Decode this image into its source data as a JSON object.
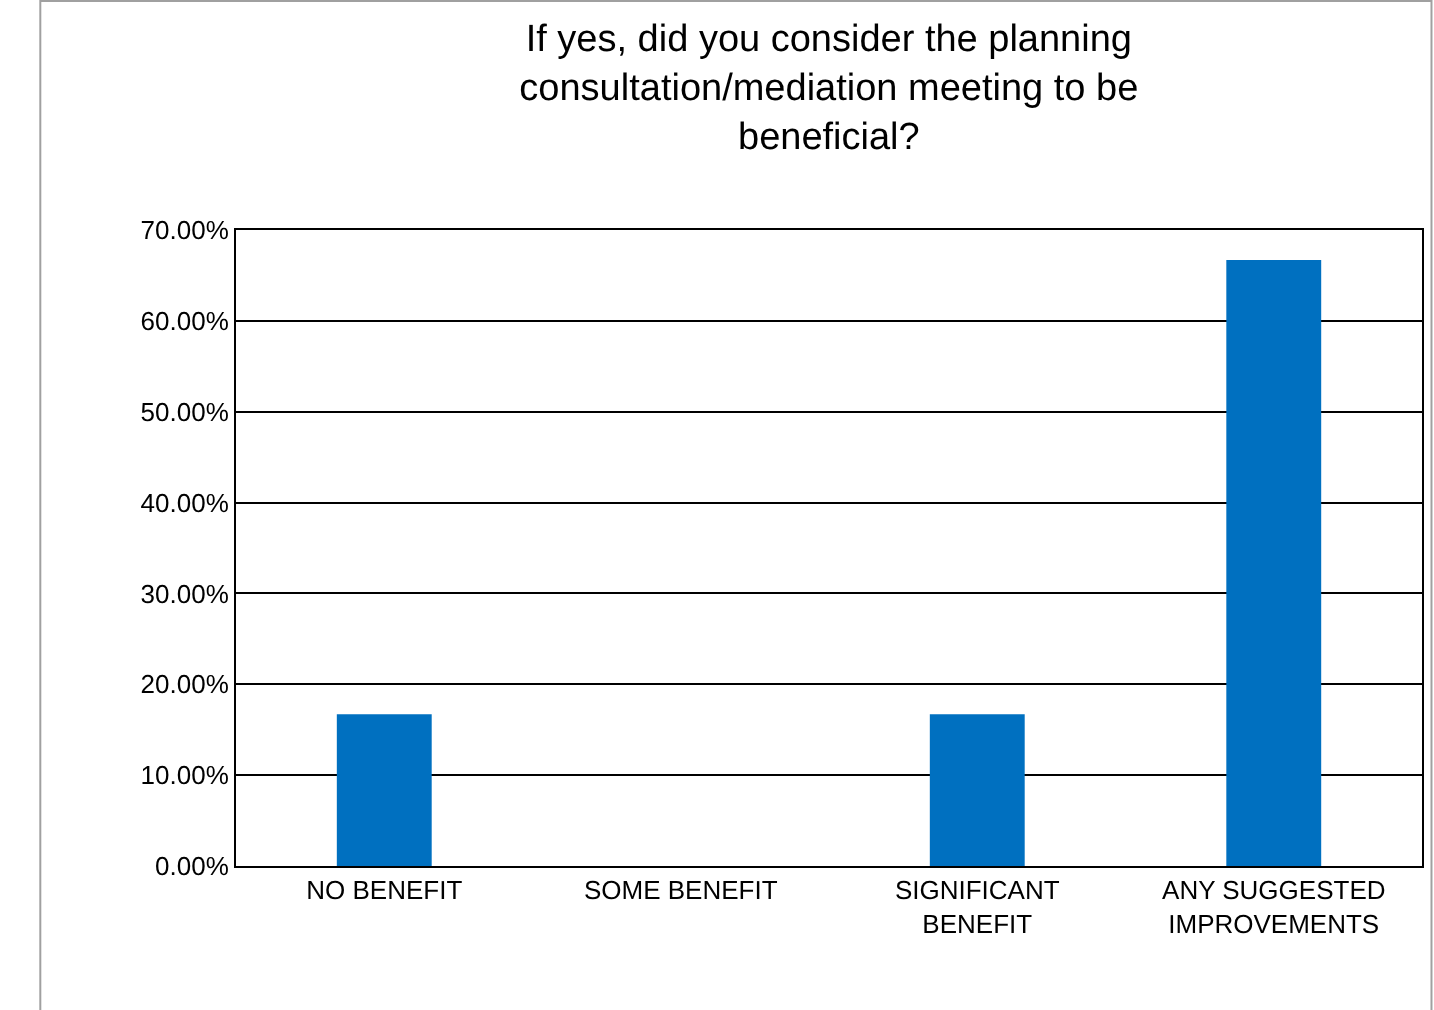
{
  "chart_data": {
    "type": "bar",
    "title": "If yes, did you consider the planning consultation/mediation meeting to be beneficial?",
    "categories": [
      "NO BENEFIT",
      "SOME BENEFIT",
      "SIGNIFICANT BENEFIT",
      "ANY SUGGESTED IMPROVEMENTS"
    ],
    "values": [
      16.7,
      0,
      16.7,
      66.7
    ],
    "color": "#0070c0",
    "ylim": [
      0,
      70
    ],
    "yticks": [
      {
        "value": 0,
        "label": "0.00%"
      },
      {
        "value": 10,
        "label": "10.00%"
      },
      {
        "value": 20,
        "label": "20.00%"
      },
      {
        "value": 30,
        "label": "30.00%"
      },
      {
        "value": 40,
        "label": "40.00%"
      },
      {
        "value": 50,
        "label": "50.00%"
      },
      {
        "value": 60,
        "label": "60.00%"
      },
      {
        "value": 70,
        "label": "70.00%"
      }
    ],
    "grid": "y"
  }
}
